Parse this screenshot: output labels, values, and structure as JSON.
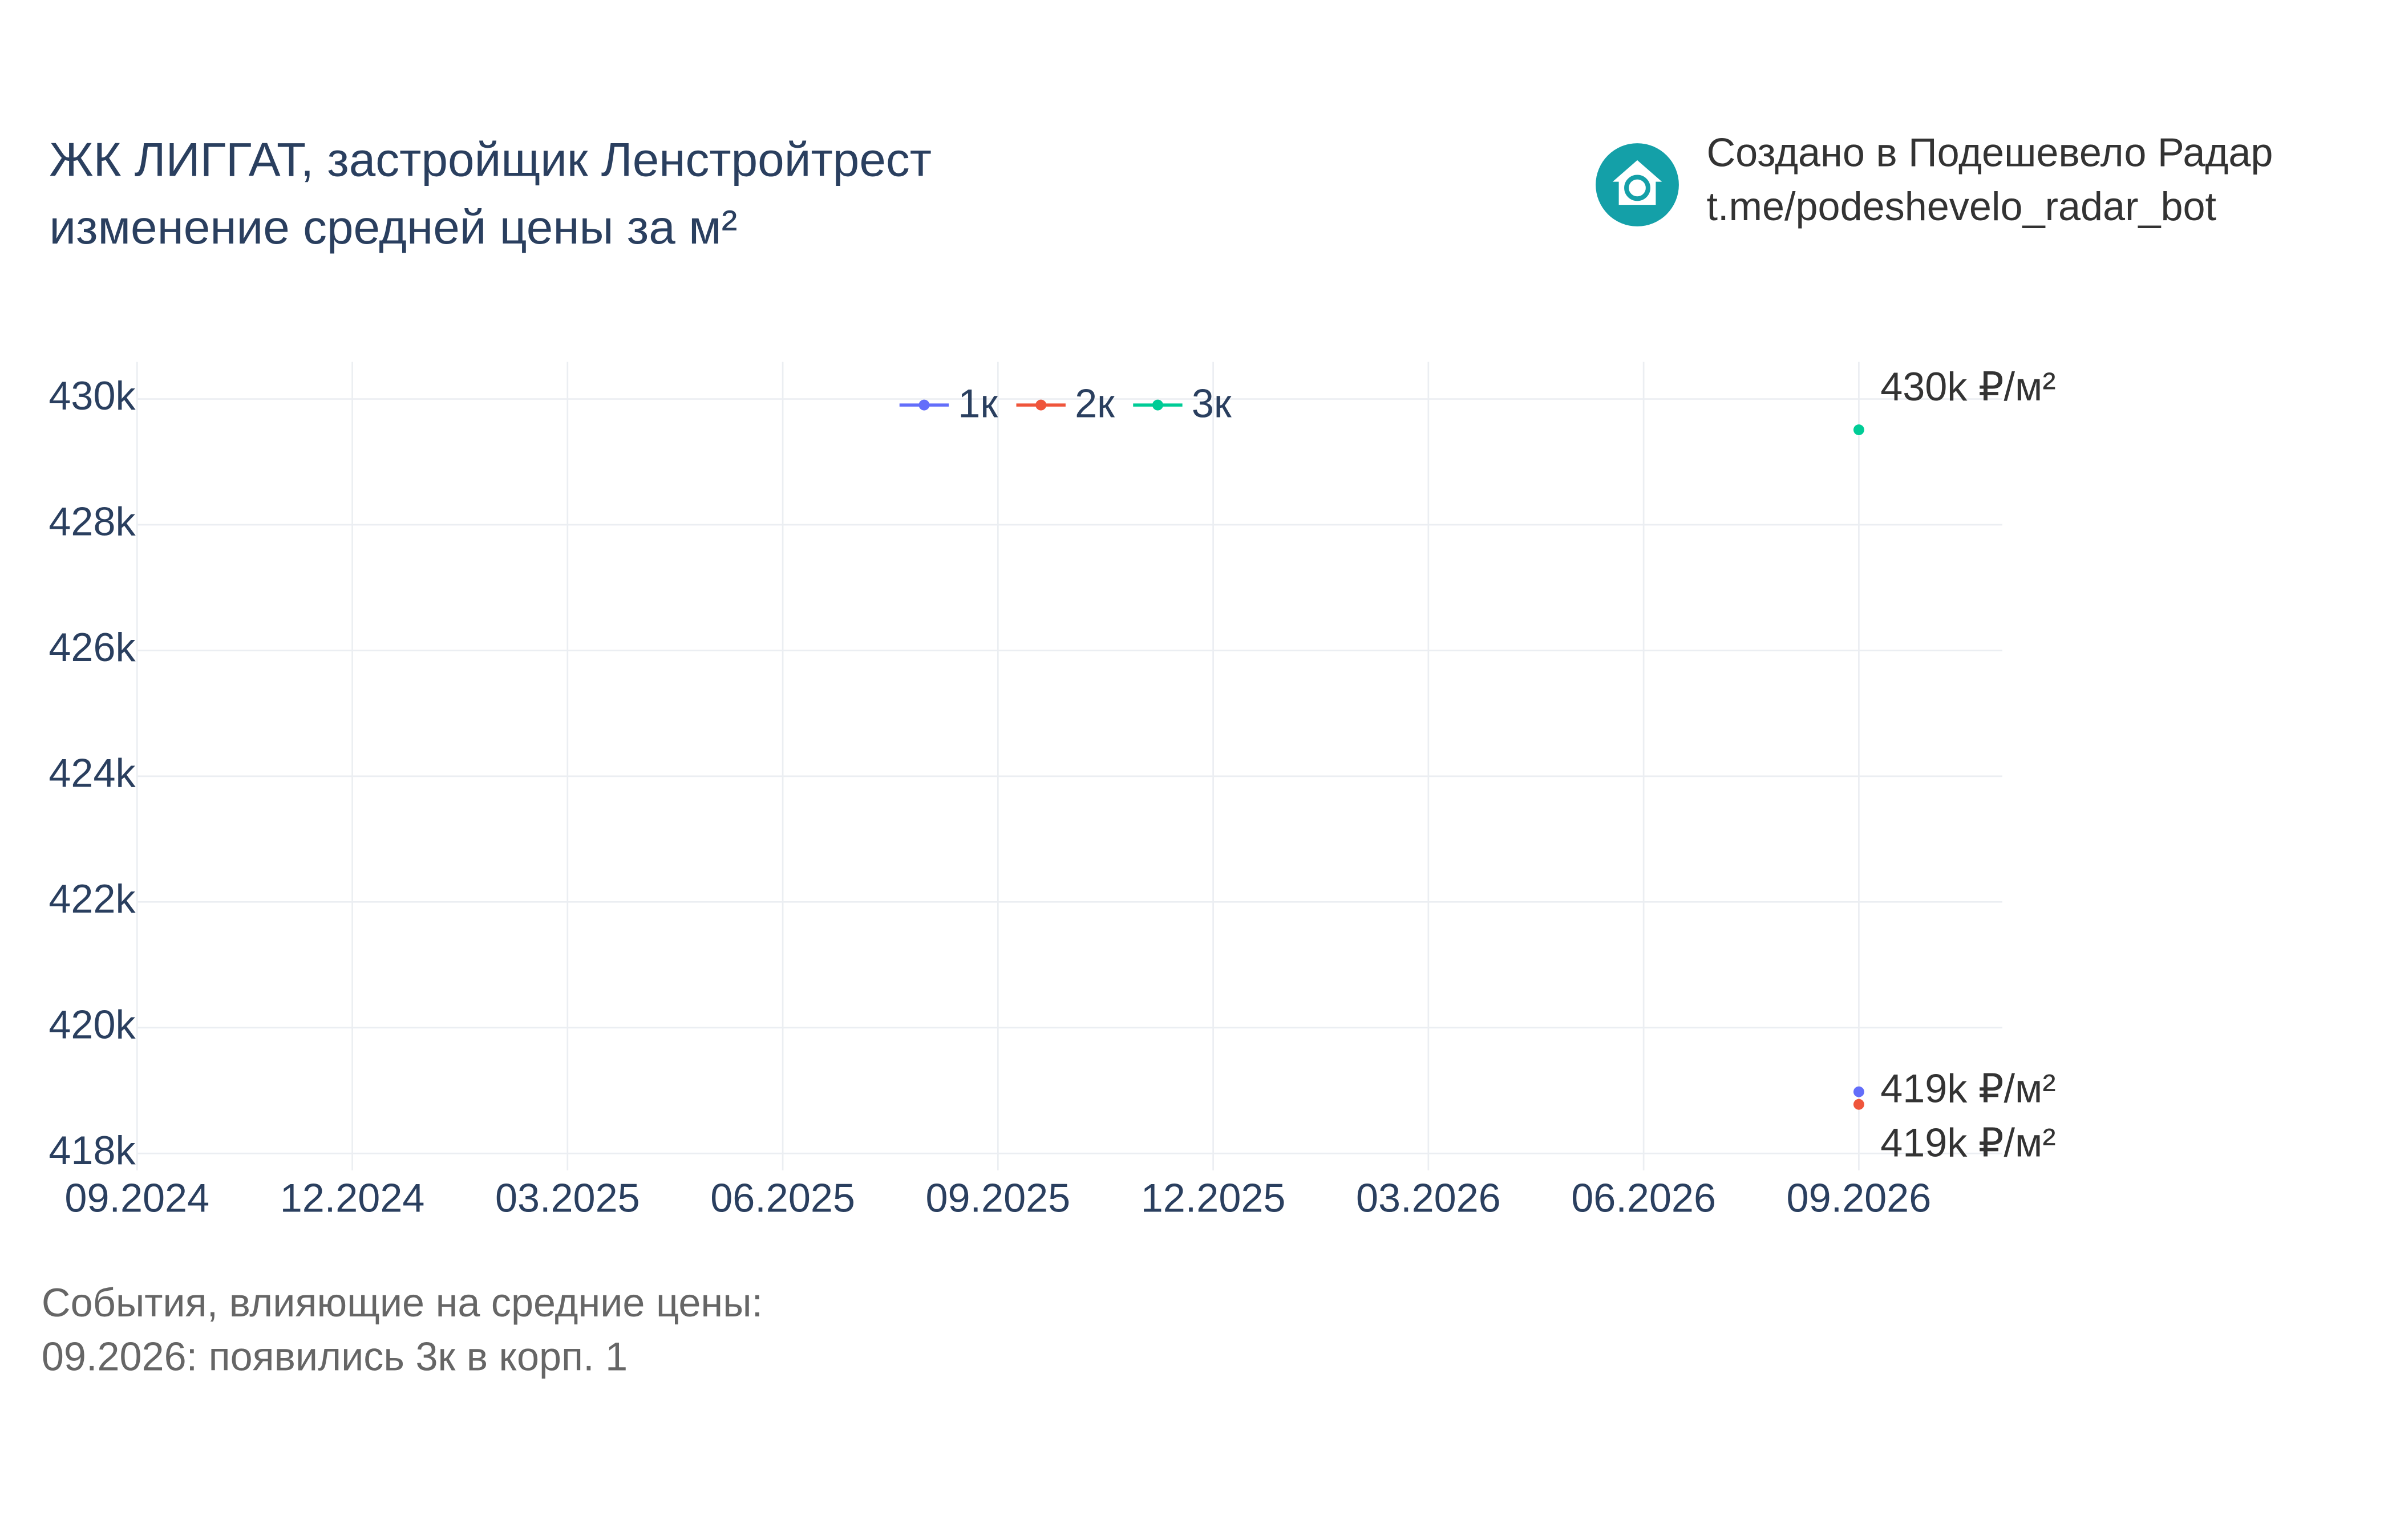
{
  "chart_data": {
    "type": "line",
    "title": "ЖК ЛИГГАТ, застройщик Ленстройтрест",
    "subtitle": "изменение средней цены за м²",
    "watermark": [
      "Создано в Подешевело Радар",
      "t.me/podeshevelo_radar_bot"
    ],
    "annotations": [
      "События, влияющие на средние цены:",
      "09.2026: появились 3к в корп. 1"
    ],
    "legend": "top",
    "grid": true,
    "xlim": [
      "09.2024",
      "11.2026"
    ],
    "xticks": [
      "09.2024",
      "12.2024",
      "03.2025",
      "06.2025",
      "09.2025",
      "12.2025",
      "03.2026",
      "06.2026",
      "09.2026"
    ],
    "ylim": [
      417730,
      430590
    ],
    "yticks": [
      {
        "value": 418000,
        "label": "418k"
      },
      {
        "value": 420000,
        "label": "420k"
      },
      {
        "value": 422000,
        "label": "422k"
      },
      {
        "value": 424000,
        "label": "424k"
      },
      {
        "value": 426000,
        "label": "426k"
      },
      {
        "value": 428000,
        "label": "428k"
      },
      {
        "value": 430000,
        "label": "430k"
      }
    ],
    "series": [
      {
        "name": "1к",
        "color": "#636efa",
        "x": [
          "09.2026"
        ],
        "values": [
          418980
        ],
        "value_labels": [
          "419k ₽/м²"
        ]
      },
      {
        "name": "2к",
        "color": "#ef553b",
        "x": [
          "09.2026"
        ],
        "values": [
          418780
        ],
        "value_labels": [
          "419k ₽/м²"
        ]
      },
      {
        "name": "3к",
        "color": "#00cc96",
        "x": [
          "09.2026"
        ],
        "values": [
          429510
        ],
        "value_labels": [
          "430k ₽/м²"
        ]
      }
    ]
  }
}
